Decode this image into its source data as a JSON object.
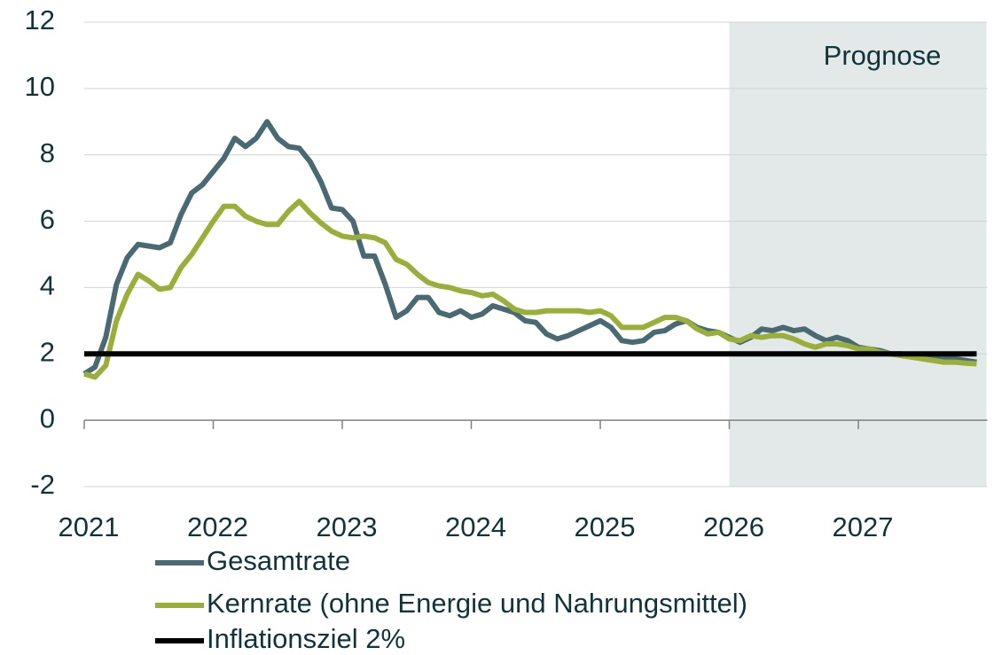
{
  "chart_data": {
    "type": "line",
    "annotation": "Prognose",
    "forecast_start": 2026,
    "forecast_color": "#e3e8e8",
    "xlim": [
      2021,
      2028
    ],
    "xticks": [
      2021,
      2022,
      2023,
      2024,
      2025,
      2026,
      2027
    ],
    "ylim": [
      -2,
      12
    ],
    "yticks": [
      -2,
      0,
      2,
      4,
      6,
      8,
      10,
      12
    ],
    "grid": true,
    "legend": "bottom",
    "x": [
      2021,
      2021.083,
      2021.167,
      2021.25,
      2021.333,
      2021.417,
      2021.5,
      2021.583,
      2021.667,
      2021.75,
      2021.833,
      2021.917,
      2022,
      2022.083,
      2022.167,
      2022.25,
      2022.333,
      2022.417,
      2022.5,
      2022.583,
      2022.667,
      2022.75,
      2022.833,
      2022.917,
      2023,
      2023.083,
      2023.167,
      2023.25,
      2023.333,
      2023.417,
      2023.5,
      2023.583,
      2023.667,
      2023.75,
      2023.833,
      2023.917,
      2024,
      2024.083,
      2024.167,
      2024.25,
      2024.333,
      2024.417,
      2024.5,
      2024.583,
      2024.667,
      2024.75,
      2024.833,
      2024.917,
      2025,
      2025.083,
      2025.167,
      2025.25,
      2025.333,
      2025.417,
      2025.5,
      2025.583,
      2025.667,
      2025.75,
      2025.833,
      2025.917,
      2026,
      2026.083,
      2026.167,
      2026.25,
      2026.333,
      2026.417,
      2026.5,
      2026.583,
      2026.667,
      2026.75,
      2026.833,
      2026.917,
      2027,
      2027.083,
      2027.167,
      2027.25,
      2027.333,
      2027.417,
      2027.5,
      2027.583,
      2027.667,
      2027.75,
      2027.833,
      2027.917
    ],
    "series": [
      {
        "name": "Gesamtrate",
        "color": "#4a6a73",
        "values": [
          1.4,
          1.6,
          2.5,
          4.1,
          4.9,
          5.3,
          5.25,
          5.2,
          5.35,
          6.2,
          6.85,
          7.1,
          7.5,
          7.9,
          8.5,
          8.25,
          8.5,
          9.0,
          8.5,
          8.25,
          8.2,
          7.8,
          7.2,
          6.4,
          6.35,
          6.0,
          4.95,
          4.95,
          4.1,
          3.1,
          3.3,
          3.7,
          3.7,
          3.25,
          3.15,
          3.3,
          3.1,
          3.2,
          3.45,
          3.35,
          3.25,
          3.0,
          2.95,
          2.6,
          2.45,
          2.55,
          2.7,
          2.85,
          3.0,
          2.8,
          2.4,
          2.35,
          2.4,
          2.65,
          2.7,
          2.9,
          3.0,
          2.8,
          2.7,
          2.65,
          2.5,
          2.35,
          2.5,
          2.75,
          2.7,
          2.8,
          2.7,
          2.75,
          2.55,
          2.4,
          2.5,
          2.4,
          2.2,
          2.15,
          2.1,
          2.0,
          2.0,
          1.95,
          1.9,
          1.9,
          1.85,
          1.85,
          1.8,
          1.75
        ]
      },
      {
        "name": "Kernrate (ohne Energie und Nahrungsmittel)",
        "color": "#9aae3a",
        "values": [
          1.4,
          1.3,
          1.65,
          3.0,
          3.8,
          4.4,
          4.2,
          3.95,
          4.0,
          4.6,
          5.0,
          5.5,
          6.0,
          6.45,
          6.45,
          6.15,
          6.0,
          5.9,
          5.9,
          6.3,
          6.6,
          6.25,
          5.95,
          5.7,
          5.55,
          5.5,
          5.55,
          5.5,
          5.35,
          4.85,
          4.7,
          4.4,
          4.15,
          4.05,
          4.0,
          3.9,
          3.85,
          3.75,
          3.8,
          3.6,
          3.35,
          3.25,
          3.25,
          3.3,
          3.3,
          3.3,
          3.3,
          3.25,
          3.3,
          3.15,
          2.8,
          2.8,
          2.8,
          2.95,
          3.1,
          3.1,
          3.0,
          2.75,
          2.6,
          2.65,
          2.45,
          2.4,
          2.55,
          2.5,
          2.55,
          2.55,
          2.45,
          2.3,
          2.2,
          2.3,
          2.3,
          2.25,
          2.15,
          2.15,
          2.05,
          2.0,
          1.95,
          1.9,
          1.85,
          1.8,
          1.75,
          1.75,
          1.72,
          1.7
        ]
      },
      {
        "name": "Inflationsziel 2%",
        "color": "#000000",
        "values": [
          2,
          2,
          2,
          2,
          2,
          2,
          2,
          2,
          2,
          2,
          2,
          2,
          2,
          2,
          2,
          2,
          2,
          2,
          2,
          2,
          2,
          2,
          2,
          2,
          2,
          2,
          2,
          2,
          2,
          2,
          2,
          2,
          2,
          2,
          2,
          2,
          2,
          2,
          2,
          2,
          2,
          2,
          2,
          2,
          2,
          2,
          2,
          2,
          2,
          2,
          2,
          2,
          2,
          2,
          2,
          2,
          2,
          2,
          2,
          2,
          2,
          2,
          2,
          2,
          2,
          2,
          2,
          2,
          2,
          2,
          2,
          2,
          2,
          2,
          2,
          2,
          2,
          2,
          2,
          2,
          2,
          2,
          2,
          2
        ]
      }
    ]
  }
}
